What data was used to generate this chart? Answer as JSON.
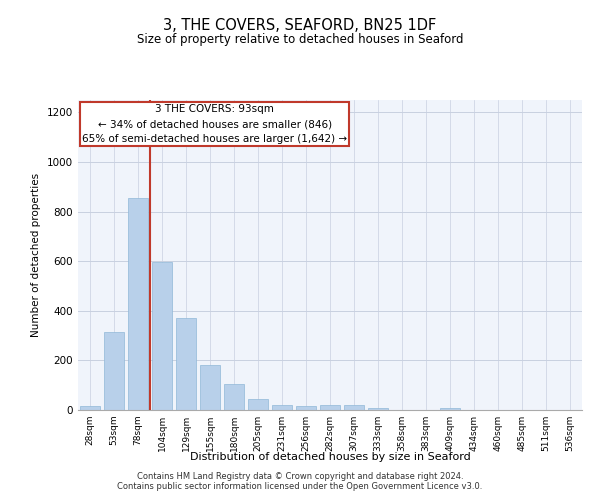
{
  "title": "3, THE COVERS, SEAFORD, BN25 1DF",
  "subtitle": "Size of property relative to detached houses in Seaford",
  "xlabel": "Distribution of detached houses by size in Seaford",
  "ylabel": "Number of detached properties",
  "categories": [
    "28sqm",
    "53sqm",
    "78sqm",
    "104sqm",
    "129sqm",
    "155sqm",
    "180sqm",
    "205sqm",
    "231sqm",
    "256sqm",
    "282sqm",
    "307sqm",
    "333sqm",
    "358sqm",
    "383sqm",
    "409sqm",
    "434sqm",
    "460sqm",
    "485sqm",
    "511sqm",
    "536sqm"
  ],
  "values": [
    15,
    315,
    855,
    598,
    370,
    183,
    105,
    46,
    22,
    18,
    20,
    20,
    10,
    0,
    0,
    10,
    0,
    0,
    0,
    0,
    0
  ],
  "bar_color": "#b8d0ea",
  "bar_edge_color": "#90b8d8",
  "marker_bin_index": 2,
  "marker_color": "#c0392b",
  "annotation_line1": "3 THE COVERS: 93sqm",
  "annotation_line2": "← 34% of detached houses are smaller (846)",
  "annotation_line3": "65% of semi-detached houses are larger (1,642) →",
  "annotation_box_color": "#c0392b",
  "ylim": [
    0,
    1250
  ],
  "yticks": [
    0,
    200,
    400,
    600,
    800,
    1000,
    1200
  ],
  "footer_line1": "Contains HM Land Registry data © Crown copyright and database right 2024.",
  "footer_line2": "Contains public sector information licensed under the Open Government Licence v3.0.",
  "bg_color": "#f0f4fb",
  "grid_color": "#c8d0e0"
}
